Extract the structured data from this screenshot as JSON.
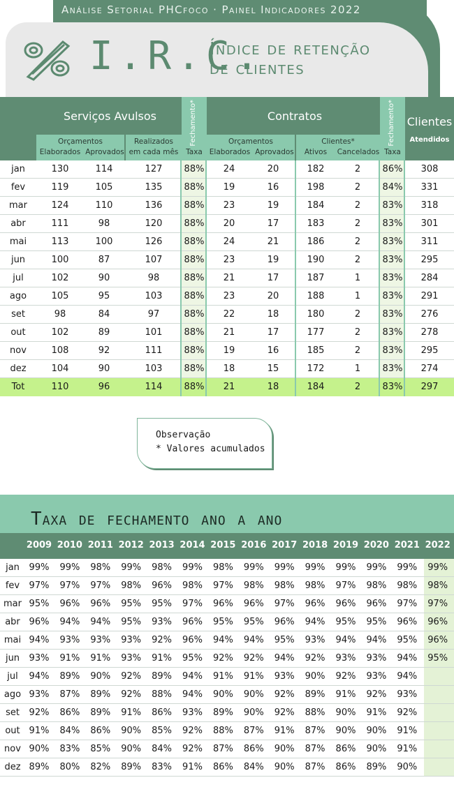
{
  "header": {
    "subtitle": "Análise Setorial PHCfoco · Painel Indicadores 2022",
    "title": "I.R.C.",
    "desc_line1": "Índice de retenção",
    "desc_line2": "de clientes"
  },
  "main_table": {
    "group_servicos": "Serviços Avulsos",
    "group_contratos": "Contratos",
    "group_clientes": "Clientes",
    "clientes_sub": "Atendidos",
    "fechamento_label": "Fechamento*",
    "orcamentos_label": "Orçamentos",
    "elaborados_label": "Elaborados",
    "aprovados_label": "Aprovados",
    "realizados_label1": "Realizados",
    "realizados_label2": "em cada mês",
    "taxa_label": "Taxa",
    "clientes_star_label": "Clientes*",
    "ativos_label": "Ativos",
    "cancelados_label": "Cancelados",
    "rows": [
      {
        "m": "jan",
        "se": "130",
        "sa": "114",
        "sr": "127",
        "st": "88%",
        "ce": "24",
        "ca": "20",
        "cat": "182",
        "cc": "2",
        "ct": "86%",
        "cl": "308"
      },
      {
        "m": "fev",
        "se": "119",
        "sa": "105",
        "sr": "135",
        "st": "88%",
        "ce": "19",
        "ca": "16",
        "cat": "198",
        "cc": "2",
        "ct": "84%",
        "cl": "331"
      },
      {
        "m": "mar",
        "se": "124",
        "sa": "110",
        "sr": "136",
        "st": "88%",
        "ce": "23",
        "ca": "19",
        "cat": "184",
        "cc": "2",
        "ct": "83%",
        "cl": "318"
      },
      {
        "m": "abr",
        "se": "111",
        "sa": "98",
        "sr": "120",
        "st": "88%",
        "ce": "20",
        "ca": "17",
        "cat": "183",
        "cc": "2",
        "ct": "83%",
        "cl": "301"
      },
      {
        "m": "mai",
        "se": "113",
        "sa": "100",
        "sr": "126",
        "st": "88%",
        "ce": "24",
        "ca": "21",
        "cat": "186",
        "cc": "2",
        "ct": "83%",
        "cl": "311"
      },
      {
        "m": "jun",
        "se": "100",
        "sa": "87",
        "sr": "107",
        "st": "88%",
        "ce": "23",
        "ca": "19",
        "cat": "190",
        "cc": "2",
        "ct": "83%",
        "cl": "295"
      },
      {
        "m": "jul",
        "se": "102",
        "sa": "90",
        "sr": "98",
        "st": "88%",
        "ce": "21",
        "ca": "17",
        "cat": "187",
        "cc": "1",
        "ct": "83%",
        "cl": "284"
      },
      {
        "m": "ago",
        "se": "105",
        "sa": "95",
        "sr": "103",
        "st": "88%",
        "ce": "23",
        "ca": "20",
        "cat": "188",
        "cc": "1",
        "ct": "83%",
        "cl": "291"
      },
      {
        "m": "set",
        "se": "98",
        "sa": "84",
        "sr": "97",
        "st": "88%",
        "ce": "22",
        "ca": "18",
        "cat": "180",
        "cc": "2",
        "ct": "83%",
        "cl": "276"
      },
      {
        "m": "out",
        "se": "102",
        "sa": "89",
        "sr": "101",
        "st": "88%",
        "ce": "21",
        "ca": "17",
        "cat": "177",
        "cc": "2",
        "ct": "83%",
        "cl": "278"
      },
      {
        "m": "nov",
        "se": "108",
        "sa": "92",
        "sr": "111",
        "st": "88%",
        "ce": "19",
        "ca": "16",
        "cat": "185",
        "cc": "2",
        "ct": "83%",
        "cl": "295"
      },
      {
        "m": "dez",
        "se": "104",
        "sa": "90",
        "sr": "103",
        "st": "88%",
        "ce": "18",
        "ca": "15",
        "cat": "172",
        "cc": "1",
        "ct": "83%",
        "cl": "274"
      }
    ],
    "total": {
      "m": "Tot",
      "se": "110",
      "sa": "96",
      "sr": "114",
      "st": "88%",
      "ce": "21",
      "ca": "18",
      "cat": "184",
      "cc": "2",
      "ct": "83%",
      "cl": "297"
    }
  },
  "observation": {
    "title": "Observação",
    "note": "* Valores acumulados"
  },
  "year_table": {
    "title": "Taxa de fechamento ano a ano",
    "years": [
      "2009",
      "2010",
      "2011",
      "2012",
      "2013",
      "2014",
      "2015",
      "2016",
      "2017",
      "2018",
      "2019",
      "2020",
      "2021",
      "2022"
    ],
    "rows": [
      {
        "m": "jan",
        "v": [
          "99%",
          "99%",
          "98%",
          "99%",
          "98%",
          "99%",
          "98%",
          "99%",
          "99%",
          "99%",
          "99%",
          "99%",
          "99%",
          "99%"
        ]
      },
      {
        "m": "fev",
        "v": [
          "97%",
          "97%",
          "97%",
          "98%",
          "96%",
          "98%",
          "97%",
          "98%",
          "98%",
          "98%",
          "97%",
          "98%",
          "98%",
          "98%"
        ]
      },
      {
        "m": "mar",
        "v": [
          "95%",
          "96%",
          "96%",
          "95%",
          "95%",
          "97%",
          "96%",
          "96%",
          "97%",
          "96%",
          "96%",
          "96%",
          "97%",
          "97%"
        ]
      },
      {
        "m": "abr",
        "v": [
          "96%",
          "94%",
          "94%",
          "95%",
          "93%",
          "96%",
          "95%",
          "95%",
          "96%",
          "94%",
          "95%",
          "95%",
          "96%",
          "96%"
        ]
      },
      {
        "m": "mai",
        "v": [
          "94%",
          "93%",
          "93%",
          "93%",
          "92%",
          "96%",
          "94%",
          "94%",
          "95%",
          "93%",
          "94%",
          "94%",
          "95%",
          "96%"
        ]
      },
      {
        "m": "jun",
        "v": [
          "93%",
          "91%",
          "91%",
          "93%",
          "91%",
          "95%",
          "92%",
          "92%",
          "94%",
          "92%",
          "93%",
          "93%",
          "94%",
          "95%"
        ]
      },
      {
        "m": "jul",
        "v": [
          "94%",
          "89%",
          "90%",
          "92%",
          "89%",
          "94%",
          "91%",
          "91%",
          "93%",
          "90%",
          "92%",
          "93%",
          "94%",
          ""
        ]
      },
      {
        "m": "ago",
        "v": [
          "93%",
          "87%",
          "89%",
          "92%",
          "88%",
          "94%",
          "90%",
          "90%",
          "92%",
          "89%",
          "91%",
          "92%",
          "93%",
          ""
        ]
      },
      {
        "m": "set",
        "v": [
          "92%",
          "86%",
          "89%",
          "91%",
          "86%",
          "93%",
          "89%",
          "90%",
          "92%",
          "88%",
          "90%",
          "91%",
          "92%",
          ""
        ]
      },
      {
        "m": "out",
        "v": [
          "91%",
          "84%",
          "86%",
          "90%",
          "85%",
          "92%",
          "88%",
          "87%",
          "91%",
          "87%",
          "90%",
          "90%",
          "91%",
          ""
        ]
      },
      {
        "m": "nov",
        "v": [
          "90%",
          "83%",
          "85%",
          "90%",
          "84%",
          "92%",
          "87%",
          "86%",
          "90%",
          "87%",
          "86%",
          "90%",
          "91%",
          ""
        ]
      },
      {
        "m": "dez",
        "v": [
          "89%",
          "80%",
          "82%",
          "89%",
          "83%",
          "91%",
          "86%",
          "84%",
          "90%",
          "87%",
          "86%",
          "89%",
          "90%",
          ""
        ]
      }
    ]
  },
  "colors": {
    "dark_green": "#5f8c73",
    "mint": "#8ac9ad",
    "total_highlight": "#c5f28c"
  }
}
